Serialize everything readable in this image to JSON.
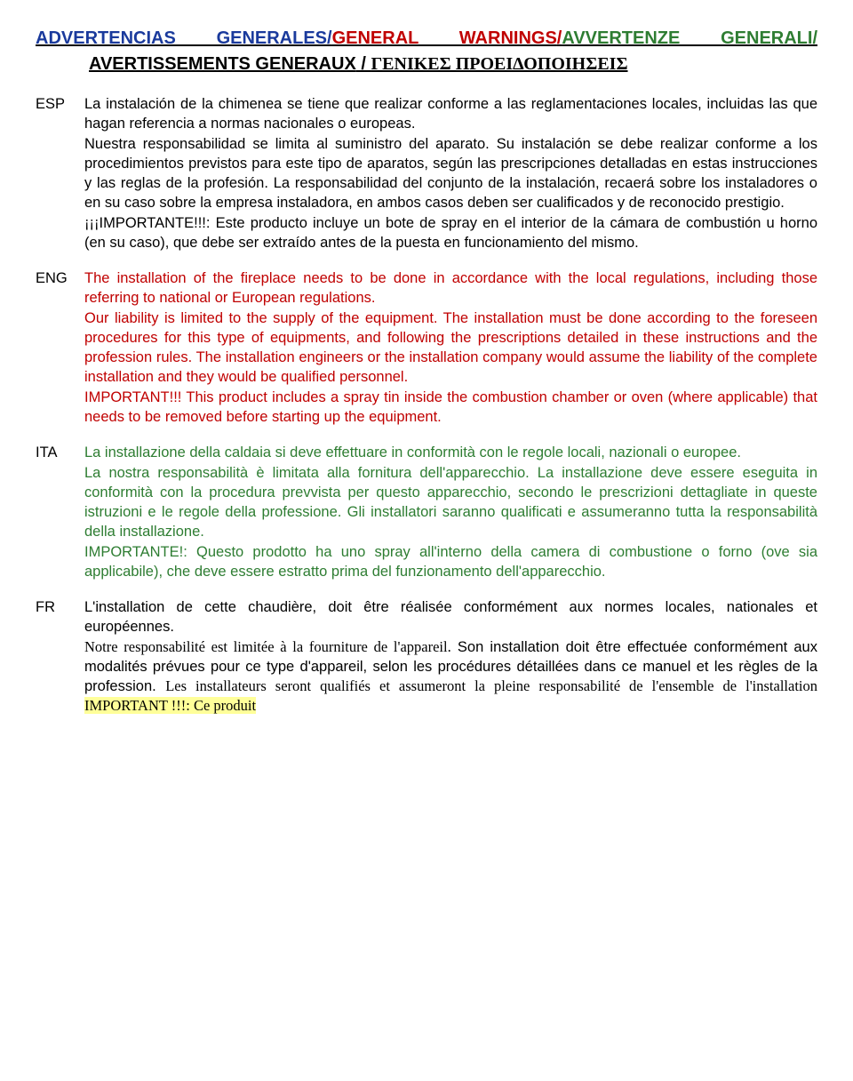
{
  "heading": {
    "esp": "ADVERTENCIAS GENERALES",
    "eng": "GENERAL WARNINGS",
    "ita": "AVVERTENZE GENERALI",
    "fr": "AVERTISSEMENTS GENERAUX",
    "gr": "ΓΕΝΙΚΕΣ ΠΡΟΕΙΔΟΠΟΙΗΣΕΙΣ",
    "sep": "/",
    "sep2": " / "
  },
  "esp": {
    "label": "ESP",
    "text": "La instalación de la chimenea se tiene que realizar conforme a las reglamentaciones locales, incluidas las que hagan referencia a normas nacionales o europeas.\nNuestra responsabilidad se limita al suministro del aparato. Su instalación se debe realizar conforme a los procedimientos previstos para este tipo de aparatos, según las prescripciones detalladas en estas instrucciones y las reglas de la profesión. La responsabilidad del conjunto de la instalación, recaerá sobre los instaladores o en su caso sobre la empresa instaladora, en  ambos casos deben ser cualificados y de reconocido prestigio.\n¡¡¡IMPORTANTE!!!: Este producto incluye un bote de spray en el interior de la cámara de combustión u horno (en su caso), que debe ser extraído antes de la puesta en funcionamiento del mismo."
  },
  "eng": {
    "label": "ENG",
    "text": "The installation of the fireplace needs to be done in accordance with the local regulations, including those referring to national or European regulations.\nOur liability is limited to the supply of the equipment. The installation must be done according to the foreseen procedures for this type of equipments, and following the prescriptions detailed in these instructions and the profession rules. The installation engineers or the installation company would assume the liability of the complete installation and they would be qualified personnel.\nIMPORTANT!!! This product includes a spray tin inside the combustion chamber or oven (where applicable) that needs to be removed before starting up the equipment."
  },
  "ita": {
    "label": "ITA",
    "text": "La installazione della caldaia si deve effettuare in conformità con le regole locali, nazionali o europee.\nLa nostra responsabilità è limitata alla fornitura dell'apparecchio. La installazione deve essere eseguita in conformità con la procedura prevvista per questo apparecchio, secondo le prescrizioni dettagliate in queste istruzioni e le regole della professione. Gli installatori saranno qualificati e assumeranno tutta la responsabilità della installazione.\nIMPORTANTE!: Questo prodotto ha uno spray all'interno della camera di combustione o forno (ove sia applicabile), che deve essere estratto prima del funzionamento dell'apparecchio."
  },
  "fr": {
    "label": "FR",
    "p1": "L'installation de cette chaudière, doit être réalisée conformément aux normes locales, nationales et européennes.",
    "p2a": "Notre responsabilité est limitée à la fourniture de l'appareil.",
    "p2b": " Son installation doit être effectuée conformément aux modalités prévues pour ce type d'appareil, selon les procédures détaillées dans ce manuel et les règles de la profession. ",
    "p2c": "Les installateurs seront qualifiés et assumeront la pleine responsabilité de l'ensemble de l'installation ",
    "hl": "IMPORTANT !!!: Ce produit"
  }
}
